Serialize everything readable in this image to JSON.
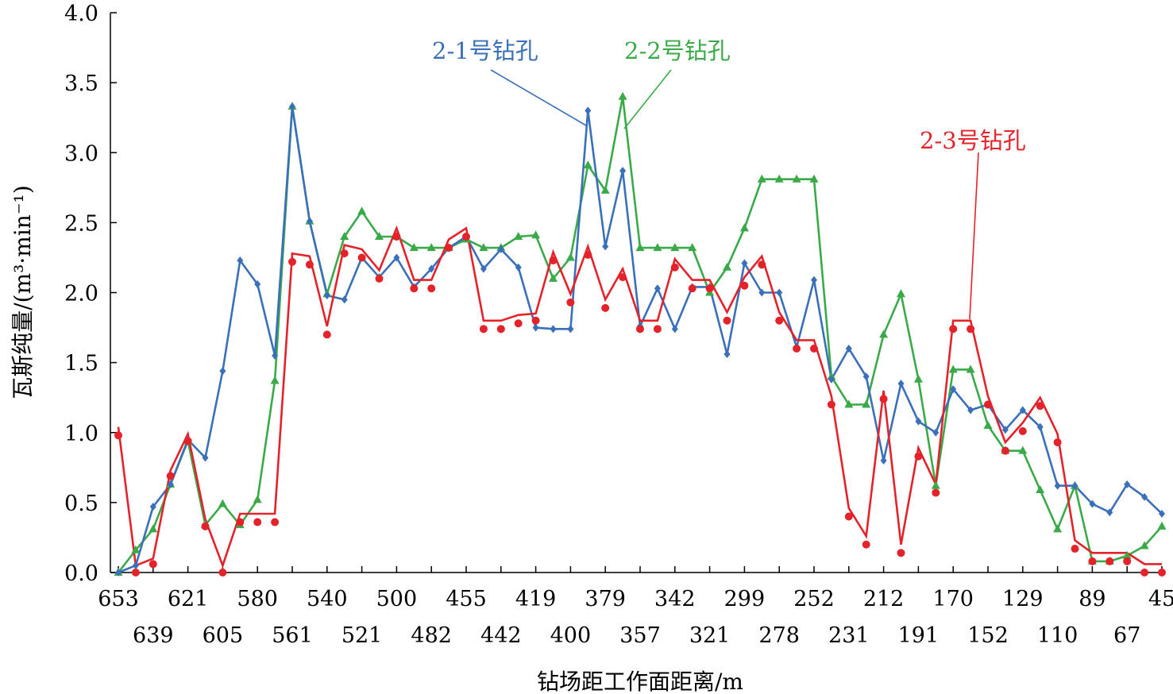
{
  "chart_data": {
    "type": "line",
    "xlabel": "钻场距工作面距离/m",
    "ylabel": "瓦斯纯量/(m³·min⁻¹)",
    "ylim": [
      0,
      4.0
    ],
    "yticks": [
      "0.0",
      "0.5",
      "1.0",
      "1.5",
      "2.0",
      "2.5",
      "3.0",
      "3.5",
      "4.0"
    ],
    "tick_labels_row1": [
      {
        "i": 0,
        "label": "653"
      },
      {
        "i": 4,
        "label": "621"
      },
      {
        "i": 8,
        "label": "580"
      },
      {
        "i": 12,
        "label": "540"
      },
      {
        "i": 16,
        "label": "500"
      },
      {
        "i": 20,
        "label": "455"
      },
      {
        "i": 24,
        "label": "419"
      },
      {
        "i": 28,
        "label": "379"
      },
      {
        "i": 32,
        "label": "342"
      },
      {
        "i": 36,
        "label": "299"
      },
      {
        "i": 40,
        "label": "252"
      },
      {
        "i": 44,
        "label": "212"
      },
      {
        "i": 48,
        "label": "170"
      },
      {
        "i": 52,
        "label": "129"
      },
      {
        "i": 56,
        "label": "89"
      },
      {
        "i": 60,
        "label": "45"
      }
    ],
    "tick_labels_row2": [
      {
        "i": 2,
        "label": "639"
      },
      {
        "i": 6,
        "label": "605"
      },
      {
        "i": 10,
        "label": "561"
      },
      {
        "i": 14,
        "label": "521"
      },
      {
        "i": 18,
        "label": "482"
      },
      {
        "i": 22,
        "label": "442"
      },
      {
        "i": 26,
        "label": "400"
      },
      {
        "i": 30,
        "label": "357"
      },
      {
        "i": 34,
        "label": "321"
      },
      {
        "i": 38,
        "label": "278"
      },
      {
        "i": 42,
        "label": "231"
      },
      {
        "i": 46,
        "label": "191"
      },
      {
        "i": 50,
        "label": "152"
      },
      {
        "i": 54,
        "label": "110"
      },
      {
        "i": 58,
        "label": "67"
      }
    ],
    "series": [
      {
        "name": "2-1号钻孔",
        "color": "#3a6fba",
        "marker": "diamond",
        "values": [
          0,
          0.05,
          0.47,
          0.63,
          0.95,
          0.82,
          1.44,
          2.23,
          2.06,
          1.55,
          3.33,
          2.51,
          1.98,
          1.95,
          2.25,
          2.11,
          2.25,
          2.04,
          2.17,
          2.32,
          2.4,
          2.17,
          2.31,
          2.18,
          1.75,
          1.74,
          1.74,
          3.3,
          2.33,
          2.87,
          1.76,
          2.03,
          1.74,
          2.04,
          2.04,
          1.56,
          2.21,
          2.0,
          2.0,
          1.61,
          2.09,
          1.38,
          1.6,
          1.4,
          0.8,
          1.35,
          1.08,
          1.0,
          1.31,
          1.16,
          1.2,
          1.02,
          1.16,
          1.04,
          0.62,
          0.62,
          0.49,
          0.43,
          0.63,
          0.54,
          0.42
        ]
      },
      {
        "name": "2-2号钻孔",
        "color": "#3aaa49",
        "marker": "triangle",
        "values": [
          0,
          0.16,
          0.31,
          0.63,
          0.94,
          0.34,
          0.49,
          0.34,
          0.52,
          1.37,
          3.33,
          2.51,
          1.99,
          2.4,
          2.58,
          2.4,
          2.4,
          2.32,
          2.32,
          2.32,
          2.38,
          2.32,
          2.32,
          2.4,
          2.41,
          2.1,
          2.25,
          2.91,
          2.73,
          3.4,
          2.32,
          2.32,
          2.32,
          2.32,
          2.0,
          2.18,
          2.46,
          2.81,
          2.81,
          2.81,
          2.81,
          1.4,
          1.2,
          1.2,
          1.7,
          1.99,
          1.38,
          0.62,
          1.45,
          1.45,
          1.05,
          0.87,
          0.87,
          0.59,
          0.31,
          0.62,
          0.08,
          0.08,
          0.12,
          0.19,
          0.33
        ]
      },
      {
        "name": "2-3号钻孔",
        "color": "#e4222a",
        "marker": "circle",
        "values": [
          0.98,
          0.0,
          0.06,
          0.69,
          0.94,
          0.33,
          0.0,
          0.36,
          0.36,
          0.36,
          2.22,
          2.2,
          1.7,
          2.28,
          2.25,
          2.1,
          2.4,
          2.03,
          2.03,
          2.32,
          2.4,
          1.74,
          1.74,
          1.78,
          1.8,
          2.23,
          1.93,
          2.27,
          1.89,
          2.11,
          1.74,
          1.74,
          2.18,
          2.03,
          2.03,
          1.8,
          2.05,
          2.2,
          1.8,
          1.6,
          1.6,
          1.2,
          0.4,
          0.2,
          1.24,
          0.14,
          0.83,
          0.57,
          1.74,
          1.74,
          1.2,
          0.87,
          1.01,
          1.19,
          0.93,
          0.17,
          0.08,
          0.08,
          0.08,
          0.0,
          0.0
        ]
      }
    ],
    "series_2_3_line": [
      1.04,
      0.05,
      0.1,
      0.73,
      0.99,
      0.38,
      0.05,
      0.42,
      0.42,
      0.42,
      2.28,
      2.26,
      1.76,
      2.34,
      2.31,
      2.16,
      2.46,
      2.09,
      2.09,
      2.38,
      2.46,
      1.8,
      1.8,
      1.84,
      1.85,
      2.29,
      1.99,
      2.33,
      1.95,
      2.17,
      1.8,
      1.8,
      2.24,
      2.09,
      2.09,
      1.86,
      2.11,
      2.26,
      1.86,
      1.66,
      1.66,
      1.26,
      0.46,
      0.26,
      1.3,
      0.2,
      0.89,
      0.63,
      1.8,
      1.8,
      1.26,
      0.93,
      1.07,
      1.25,
      0.99,
      0.23,
      0.14,
      0.14,
      0.14,
      0.06,
      0.06
    ]
  }
}
